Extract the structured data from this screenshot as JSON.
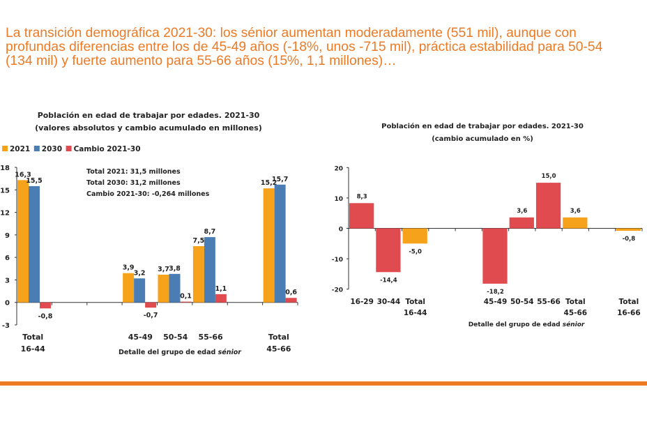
{
  "headline": "La transición demográfica 2021-30: los sénior aumentan moderadamente (551 mil), aunque con\nprofundas diferencias entre los de 45-49 años (-18%, unos -715 mil), práctica estabilidad para 50-54\n(134 mil) y fuerte aumento para 55-66 años (15%, 1,1 millones)…",
  "colors": {
    "c2021": "#f7a21b",
    "c2030": "#4a7db3",
    "cambio": "#e04b4f",
    "accent": "#ee7a24"
  },
  "chart_data": [
    {
      "type": "bar",
      "title": "Población en edad de trabajar por edades. 2021-30",
      "subtitle": "(valores absolutos y cambio acumulado en millones)",
      "legend_position": "top-left",
      "ylim": [
        -3,
        18
      ],
      "yticks": [
        "-3",
        "0",
        "3",
        "6",
        "9",
        "12",
        "15",
        "18"
      ],
      "xlabel": "Detalle del grupo de edad",
      "xlabel_italic": "sénior",
      "annotations": [
        "Total 2021: 31,5 millones",
        "Total 2030: 31,2 millones",
        "Cambio 2021-30: -0,264 millones"
      ],
      "categories": [
        [
          "Total",
          "16-44"
        ],
        [
          "",
          ""
        ],
        [
          "",
          ""
        ],
        [
          "45-49",
          ""
        ],
        [
          "50-54",
          ""
        ],
        [
          "55-66",
          ""
        ],
        [
          "",
          ""
        ],
        [
          "Total",
          "45-66"
        ]
      ],
      "series": [
        {
          "name": "2021",
          "color": "#f7a21b",
          "values": [
            16.3,
            null,
            null,
            3.9,
            3.7,
            7.5,
            null,
            15.2
          ],
          "labels": [
            "16,3",
            "",
            "",
            "3,9",
            "3,7",
            "7,5",
            "",
            "15,2"
          ]
        },
        {
          "name": "2030",
          "color": "#4a7db3",
          "values": [
            15.5,
            null,
            null,
            3.2,
            3.8,
            8.7,
            null,
            15.7
          ],
          "labels": [
            "15,5",
            "",
            "",
            "3,2",
            "3,8",
            "8,7",
            "",
            "15,7"
          ]
        },
        {
          "name": "Cambio 2021-30",
          "color": "#e04b4f",
          "values": [
            -0.8,
            null,
            null,
            -0.7,
            0.1,
            1.1,
            null,
            0.6
          ],
          "labels": [
            "-0,8",
            "",
            "",
            "-0,7",
            "0,1",
            "1,1",
            "",
            "0,6"
          ]
        }
      ]
    },
    {
      "type": "bar",
      "title": "Población en edad de trabajar por edades. 2021-30",
      "subtitle": "(cambio acumulado en %)",
      "ylim": [
        -20,
        20
      ],
      "yticks": [
        "-20",
        "-10",
        "0",
        "10",
        "20"
      ],
      "xlabel": "Detalle del grupo de edad",
      "xlabel_italic": "sénior",
      "categories": [
        [
          "16-29",
          ""
        ],
        [
          "30-44",
          ""
        ],
        [
          "Total",
          "16-44"
        ],
        [
          "",
          ""
        ],
        [
          "",
          ""
        ],
        [
          "45-49",
          ""
        ],
        [
          "50-54",
          ""
        ],
        [
          "55-66",
          ""
        ],
        [
          "Total",
          "45-66"
        ],
        [
          "",
          ""
        ],
        [
          "Total",
          "16-66"
        ]
      ],
      "values": [
        8.3,
        -14.4,
        -5.0,
        null,
        null,
        -18.2,
        3.6,
        15.0,
        3.6,
        null,
        -0.8
      ],
      "labels": [
        "8,3",
        "-14,4",
        "-5,0",
        "",
        "",
        "-18,2",
        "3,6",
        "15,0",
        "3,6",
        "",
        "-0,8"
      ],
      "bar_colors": [
        "#e04b4f",
        "#e04b4f",
        "#f7a21b",
        null,
        null,
        "#e04b4f",
        "#e04b4f",
        "#e04b4f",
        "#f7a21b",
        null,
        "#f7a21b"
      ]
    }
  ]
}
